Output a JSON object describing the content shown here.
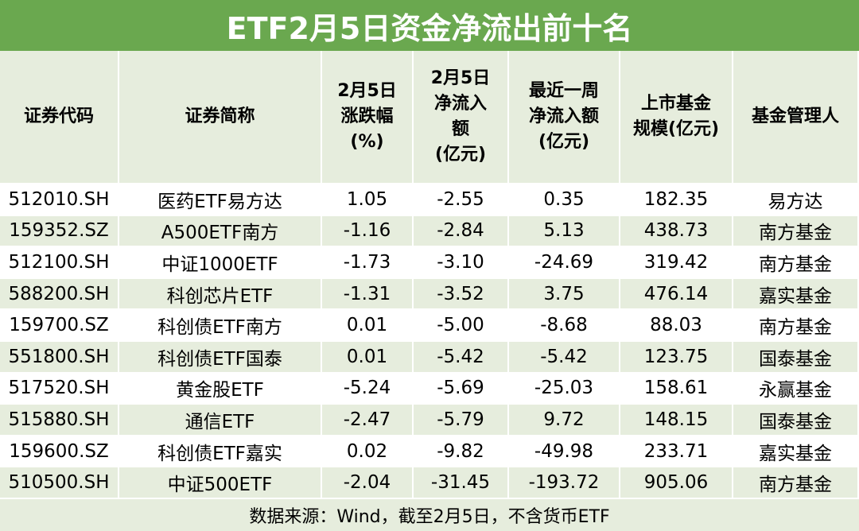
{
  "title": "ETF2月5日资金净流出前十名",
  "table": {
    "header": [
      [
        "证券代码"
      ],
      [
        "证券简称"
      ],
      [
        "2月5日",
        "涨跌幅",
        "(%)"
      ],
      [
        "2月5日",
        "净流入",
        "额",
        "(亿元)"
      ],
      [
        "最近一周",
        "净流入额",
        "(亿元)"
      ],
      [
        "上市基金",
        "规模(亿元)"
      ],
      [
        "基金管理人"
      ]
    ],
    "rows": [
      [
        "512010.SH",
        "医药ETF易方达",
        "1.05",
        "-2.55",
        "0.35",
        "182.35",
        "易方达"
      ],
      [
        "159352.SZ",
        "A500ETF南方",
        "-1.16",
        "-2.84",
        "5.13",
        "438.73",
        "南方基金"
      ],
      [
        "512100.SH",
        "中证1000ETF",
        "-1.73",
        "-3.10",
        "-24.69",
        "319.42",
        "南方基金"
      ],
      [
        "588200.SH",
        "科创芯片ETF",
        "-1.31",
        "-3.52",
        "3.75",
        "476.14",
        "嘉实基金"
      ],
      [
        "159700.SZ",
        "科创债ETF南方",
        "0.01",
        "-5.00",
        "-8.68",
        "88.03",
        "南方基金"
      ],
      [
        "551800.SH",
        "科创债ETF国泰",
        "0.01",
        "-5.42",
        "-5.42",
        "123.75",
        "国泰基金"
      ],
      [
        "517520.SH",
        "黄金股ETF",
        "-5.24",
        "-5.69",
        "-25.03",
        "158.61",
        "永赢基金"
      ],
      [
        "515880.SH",
        "通信ETF",
        "-2.47",
        "-5.79",
        "9.72",
        "148.15",
        "国泰基金"
      ],
      [
        "159600.SZ",
        "科创债ETF嘉实",
        "0.02",
        "-9.82",
        "-49.98",
        "233.71",
        "嘉实基金"
      ],
      [
        "510500.SH",
        "中证500ETF",
        "-2.04",
        "-31.45",
        "-193.72",
        "905.06",
        "南方基金"
      ]
    ]
  },
  "footer": "数据来源：Wind，截至2月5日，不含货币ETF"
}
